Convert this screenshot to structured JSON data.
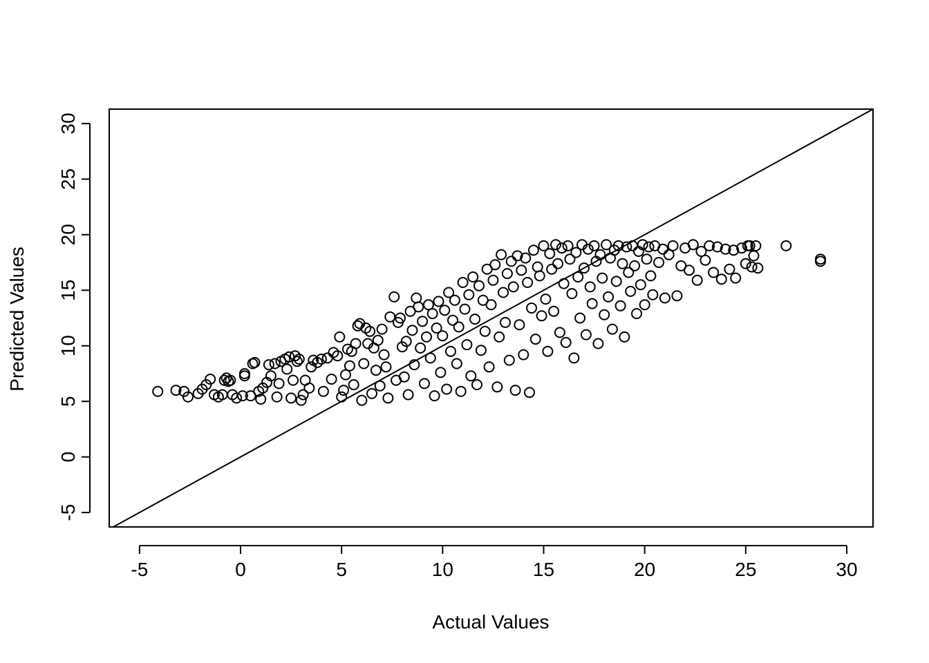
{
  "chart_data": {
    "type": "scatter",
    "title": "",
    "xlabel": "Actual Values",
    "ylabel": "Predicted Values",
    "xlim": [
      -6.5,
      31.3
    ],
    "ylim": [
      -6.3,
      31.3
    ],
    "x_ticks": [
      -5,
      0,
      5,
      10,
      15,
      20,
      25,
      30
    ],
    "y_ticks": [
      -5,
      0,
      5,
      10,
      15,
      20,
      25,
      30
    ],
    "x_tick_labels": [
      "-5",
      "0",
      "5",
      "10",
      "15",
      "20",
      "25",
      "30"
    ],
    "y_tick_labels": [
      "-5",
      "0",
      "5",
      "10",
      "15",
      "20",
      "25",
      "30"
    ],
    "reference_line": {
      "intercept": 0,
      "slope": 1
    },
    "marker": "open-circle",
    "grid": false,
    "legend": "none",
    "points": [
      [
        -4.1,
        5.9
      ],
      [
        -3.2,
        6.0
      ],
      [
        -2.8,
        5.9
      ],
      [
        -2.6,
        5.4
      ],
      [
        -2.1,
        5.7
      ],
      [
        -1.9,
        6.1
      ],
      [
        -1.7,
        6.5
      ],
      [
        -1.5,
        7.0
      ],
      [
        -1.3,
        5.6
      ],
      [
        -1.1,
        5.4
      ],
      [
        -0.9,
        5.6
      ],
      [
        -0.8,
        6.9
      ],
      [
        -0.7,
        7.1
      ],
      [
        -0.6,
        6.8
      ],
      [
        -0.5,
        6.9
      ],
      [
        -0.4,
        5.6
      ],
      [
        -0.2,
        5.3
      ],
      [
        0.1,
        5.5
      ],
      [
        0.2,
        7.3
      ],
      [
        0.2,
        7.5
      ],
      [
        0.5,
        5.5
      ],
      [
        0.6,
        8.4
      ],
      [
        0.7,
        8.5
      ],
      [
        0.9,
        5.9
      ],
      [
        1.0,
        5.2
      ],
      [
        1.1,
        6.2
      ],
      [
        1.3,
        6.7
      ],
      [
        1.4,
        8.3
      ],
      [
        1.5,
        7.3
      ],
      [
        1.7,
        8.4
      ],
      [
        1.8,
        5.4
      ],
      [
        1.9,
        6.6
      ],
      [
        2.0,
        8.6
      ],
      [
        2.2,
        8.8
      ],
      [
        2.3,
        7.9
      ],
      [
        2.4,
        9.0
      ],
      [
        2.5,
        5.3
      ],
      [
        2.6,
        6.9
      ],
      [
        2.7,
        9.1
      ],
      [
        2.8,
        8.6
      ],
      [
        2.9,
        8.8
      ],
      [
        3.0,
        5.1
      ],
      [
        3.1,
        5.6
      ],
      [
        3.2,
        6.9
      ],
      [
        3.4,
        6.2
      ],
      [
        3.5,
        8.1
      ],
      [
        3.6,
        8.7
      ],
      [
        3.8,
        8.5
      ],
      [
        4.0,
        8.8
      ],
      [
        4.1,
        5.9
      ],
      [
        4.3,
        8.9
      ],
      [
        4.5,
        7.0
      ],
      [
        4.6,
        9.4
      ],
      [
        4.8,
        9.1
      ],
      [
        4.9,
        10.8
      ],
      [
        5.0,
        5.4
      ],
      [
        5.1,
        6.0
      ],
      [
        5.2,
        7.4
      ],
      [
        5.3,
        9.7
      ],
      [
        5.4,
        8.2
      ],
      [
        5.5,
        9.5
      ],
      [
        5.6,
        6.5
      ],
      [
        5.7,
        10.2
      ],
      [
        5.8,
        11.8
      ],
      [
        5.9,
        12.0
      ],
      [
        6.0,
        5.1
      ],
      [
        6.1,
        8.4
      ],
      [
        6.2,
        11.6
      ],
      [
        6.3,
        10.2
      ],
      [
        6.4,
        11.3
      ],
      [
        6.5,
        5.7
      ],
      [
        6.6,
        9.8
      ],
      [
        6.7,
        7.8
      ],
      [
        6.8,
        10.5
      ],
      [
        6.9,
        6.4
      ],
      [
        7.0,
        11.5
      ],
      [
        7.1,
        9.2
      ],
      [
        7.2,
        8.1
      ],
      [
        7.3,
        5.3
      ],
      [
        7.4,
        12.6
      ],
      [
        7.6,
        14.4
      ],
      [
        7.7,
        6.9
      ],
      [
        7.8,
        12.1
      ],
      [
        7.9,
        12.5
      ],
      [
        8.0,
        9.9
      ],
      [
        8.1,
        7.2
      ],
      [
        8.2,
        10.4
      ],
      [
        8.3,
        5.6
      ],
      [
        8.4,
        13.1
      ],
      [
        8.5,
        11.4
      ],
      [
        8.6,
        8.3
      ],
      [
        8.7,
        14.3
      ],
      [
        8.8,
        13.5
      ],
      [
        8.9,
        9.8
      ],
      [
        9.0,
        12.2
      ],
      [
        9.1,
        6.6
      ],
      [
        9.2,
        10.8
      ],
      [
        9.3,
        13.7
      ],
      [
        9.4,
        8.9
      ],
      [
        9.5,
        12.9
      ],
      [
        9.6,
        5.5
      ],
      [
        9.7,
        11.6
      ],
      [
        9.8,
        14.0
      ],
      [
        9.9,
        7.6
      ],
      [
        10.0,
        10.9
      ],
      [
        10.1,
        13.2
      ],
      [
        10.2,
        6.1
      ],
      [
        10.3,
        14.8
      ],
      [
        10.4,
        9.5
      ],
      [
        10.5,
        12.3
      ],
      [
        10.6,
        14.1
      ],
      [
        10.7,
        8.4
      ],
      [
        10.8,
        11.7
      ],
      [
        10.9,
        5.9
      ],
      [
        11.0,
        15.7
      ],
      [
        11.1,
        13.3
      ],
      [
        11.2,
        10.1
      ],
      [
        11.3,
        14.6
      ],
      [
        11.4,
        7.3
      ],
      [
        11.5,
        16.2
      ],
      [
        11.6,
        12.4
      ],
      [
        11.7,
        6.5
      ],
      [
        11.8,
        15.4
      ],
      [
        11.9,
        9.6
      ],
      [
        12.0,
        14.1
      ],
      [
        12.1,
        11.3
      ],
      [
        12.2,
        16.9
      ],
      [
        12.3,
        8.1
      ],
      [
        12.4,
        13.7
      ],
      [
        12.5,
        15.9
      ],
      [
        12.6,
        17.3
      ],
      [
        12.7,
        6.3
      ],
      [
        12.8,
        10.8
      ],
      [
        12.9,
        18.2
      ],
      [
        13.0,
        14.8
      ],
      [
        13.1,
        12.1
      ],
      [
        13.2,
        16.5
      ],
      [
        13.3,
        8.7
      ],
      [
        13.4,
        17.6
      ],
      [
        13.5,
        15.3
      ],
      [
        13.6,
        6.0
      ],
      [
        13.7,
        18.1
      ],
      [
        13.8,
        11.9
      ],
      [
        13.9,
        16.8
      ],
      [
        14.0,
        9.2
      ],
      [
        14.1,
        17.9
      ],
      [
        14.2,
        15.7
      ],
      [
        14.3,
        5.8
      ],
      [
        14.4,
        13.4
      ],
      [
        14.5,
        18.6
      ],
      [
        14.6,
        10.6
      ],
      [
        14.7,
        17.1
      ],
      [
        14.8,
        16.3
      ],
      [
        14.9,
        12.7
      ],
      [
        15.0,
        19.0
      ],
      [
        15.1,
        14.2
      ],
      [
        15.2,
        9.5
      ],
      [
        15.3,
        18.3
      ],
      [
        15.4,
        16.9
      ],
      [
        15.5,
        13.1
      ],
      [
        15.6,
        19.1
      ],
      [
        15.7,
        17.4
      ],
      [
        15.8,
        11.2
      ],
      [
        15.9,
        18.8
      ],
      [
        16.0,
        15.6
      ],
      [
        16.1,
        10.3
      ],
      [
        16.2,
        19.0
      ],
      [
        16.3,
        17.8
      ],
      [
        16.4,
        14.7
      ],
      [
        16.5,
        8.9
      ],
      [
        16.6,
        18.4
      ],
      [
        16.7,
        16.2
      ],
      [
        16.8,
        12.5
      ],
      [
        16.9,
        19.1
      ],
      [
        17.0,
        17.0
      ],
      [
        17.1,
        11.0
      ],
      [
        17.2,
        18.7
      ],
      [
        17.3,
        15.3
      ],
      [
        17.4,
        13.8
      ],
      [
        17.5,
        19.0
      ],
      [
        17.6,
        17.6
      ],
      [
        17.7,
        10.2
      ],
      [
        17.8,
        18.2
      ],
      [
        17.9,
        16.1
      ],
      [
        18.0,
        12.8
      ],
      [
        18.1,
        19.1
      ],
      [
        18.2,
        14.4
      ],
      [
        18.3,
        17.9
      ],
      [
        18.4,
        11.5
      ],
      [
        18.5,
        18.6
      ],
      [
        18.6,
        15.8
      ],
      [
        18.7,
        19.0
      ],
      [
        18.8,
        13.6
      ],
      [
        18.9,
        17.4
      ],
      [
        19.0,
        10.8
      ],
      [
        19.1,
        18.9
      ],
      [
        19.2,
        16.6
      ],
      [
        19.3,
        14.9
      ],
      [
        19.4,
        19.0
      ],
      [
        19.5,
        17.2
      ],
      [
        19.6,
        12.9
      ],
      [
        19.7,
        18.5
      ],
      [
        19.8,
        15.5
      ],
      [
        19.9,
        19.1
      ],
      [
        20.0,
        13.7
      ],
      [
        20.1,
        17.8
      ],
      [
        20.2,
        18.9
      ],
      [
        20.3,
        16.3
      ],
      [
        20.4,
        14.6
      ],
      [
        20.5,
        19.0
      ],
      [
        20.7,
        17.5
      ],
      [
        20.9,
        18.7
      ],
      [
        21.0,
        14.3
      ],
      [
        21.2,
        18.2
      ],
      [
        21.4,
        19.0
      ],
      [
        21.6,
        14.5
      ],
      [
        21.8,
        17.2
      ],
      [
        22.0,
        18.8
      ],
      [
        22.2,
        16.8
      ],
      [
        22.4,
        19.1
      ],
      [
        22.6,
        15.9
      ],
      [
        22.8,
        18.5
      ],
      [
        23.0,
        17.7
      ],
      [
        23.2,
        19.0
      ],
      [
        23.4,
        16.6
      ],
      [
        23.6,
        18.9
      ],
      [
        23.8,
        16.0
      ],
      [
        24.0,
        18.7
      ],
      [
        24.2,
        16.9
      ],
      [
        24.4,
        18.6
      ],
      [
        24.5,
        16.1
      ],
      [
        24.8,
        18.8
      ],
      [
        25.0,
        17.4
      ],
      [
        25.1,
        19.0
      ],
      [
        25.2,
        19.0
      ],
      [
        25.3,
        17.1
      ],
      [
        25.4,
        18.1
      ],
      [
        25.5,
        19.0
      ],
      [
        25.6,
        17.0
      ],
      [
        27.0,
        19.0
      ],
      [
        28.7,
        17.6
      ],
      [
        28.7,
        17.8
      ]
    ]
  }
}
